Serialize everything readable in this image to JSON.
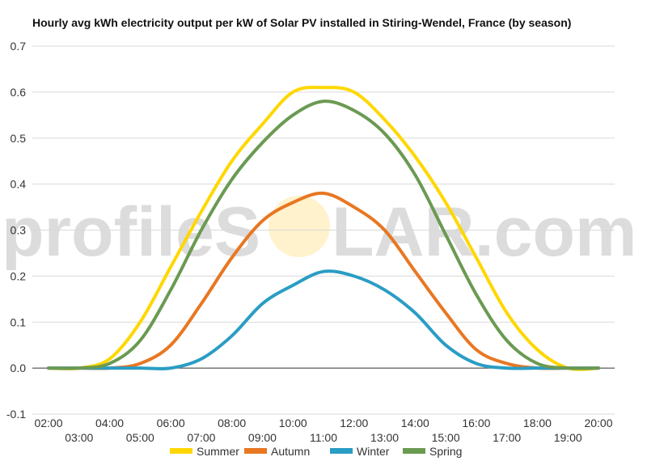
{
  "chart_data": {
    "type": "line",
    "title": "Hourly avg kWh electricity output per kW of Solar PV installed in Stiring-Wendel, France (by season)",
    "xlabel": "",
    "ylabel": "",
    "ylim": [
      -0.1,
      0.7
    ],
    "yticks": [
      "-0.1",
      "0.0",
      "0.1",
      "0.2",
      "0.3",
      "0.4",
      "0.5",
      "0.6",
      "0.7"
    ],
    "grid": true,
    "legend": "bottom",
    "categories": [
      "02:00",
      "03:00",
      "04:00",
      "05:00",
      "06:00",
      "07:00",
      "08:00",
      "09:00",
      "10:00",
      "11:00",
      "12:00",
      "13:00",
      "14:00",
      "15:00",
      "16:00",
      "17:00",
      "18:00",
      "19:00",
      "20:00"
    ],
    "series": [
      {
        "name": "Summer",
        "color": "#FFD700",
        "values": [
          0.0,
          0.0,
          0.02,
          0.1,
          0.22,
          0.34,
          0.45,
          0.53,
          0.6,
          0.61,
          0.6,
          0.54,
          0.46,
          0.36,
          0.24,
          0.12,
          0.04,
          0.0,
          0.0
        ]
      },
      {
        "name": "Autumn",
        "color": "#E87722",
        "values": [
          0.0,
          0.0,
          0.0,
          0.01,
          0.05,
          0.14,
          0.24,
          0.32,
          0.36,
          0.38,
          0.35,
          0.3,
          0.21,
          0.12,
          0.04,
          0.01,
          0.0,
          0.0,
          0.0
        ]
      },
      {
        "name": "Winter",
        "color": "#2A9DC4",
        "values": [
          0.0,
          0.0,
          0.0,
          0.0,
          0.0,
          0.02,
          0.07,
          0.14,
          0.18,
          0.21,
          0.2,
          0.17,
          0.12,
          0.05,
          0.01,
          0.0,
          0.0,
          0.0,
          0.0
        ]
      },
      {
        "name": "Spring",
        "color": "#6A9A52",
        "values": [
          0.0,
          0.0,
          0.01,
          0.06,
          0.17,
          0.3,
          0.41,
          0.49,
          0.55,
          0.58,
          0.56,
          0.51,
          0.42,
          0.29,
          0.16,
          0.06,
          0.01,
          0.0,
          0.0
        ]
      }
    ]
  },
  "watermark": {
    "left_text": "profileS",
    "right_text": "LAR.com",
    "sun_color": "#FFF2CC"
  }
}
